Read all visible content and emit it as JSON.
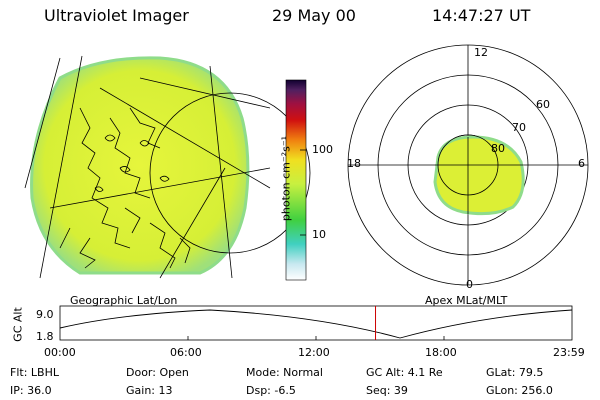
{
  "header": {
    "instrument": "Ultraviolet Imager",
    "date": "29 May 00",
    "time": "14:47:27 UT"
  },
  "colorbar": {
    "label": "photon cm⁻²s⁻¹",
    "ticks": [
      "100",
      "10"
    ],
    "scale": "log"
  },
  "geo_panel": {
    "label": "Geographic Lat/Lon"
  },
  "polar_panel": {
    "label": "Apex MLat/MLT",
    "mlt_labels": [
      "12",
      "18",
      "6",
      "0"
    ],
    "mlat_labels": [
      "60",
      "70",
      "80"
    ]
  },
  "timeline": {
    "ylabel": "GC Alt",
    "y_ticks": [
      "9.0",
      "1.8"
    ],
    "x_ticks": [
      "00:00",
      "06:00",
      "12:00",
      "18:00",
      "23:59"
    ],
    "current_marker_hours": 14.79
  },
  "info": {
    "flt": "Flt: LBHL",
    "ip": "IP: 36.0",
    "door": "Door: Open",
    "gain": "Gain: 13",
    "mode": "Mode: Normal",
    "dsp": "Dsp:    -6.5",
    "gcalt": "GC Alt: 4.1 Re",
    "seq": "Seq: 39",
    "glat": "GLat:  79.5",
    "glon": "GLon: 256.0"
  },
  "colors": {
    "aurora_fill": "#d9f23a",
    "aurora_edge": "#6fd98a",
    "marker": "#cc0000"
  }
}
